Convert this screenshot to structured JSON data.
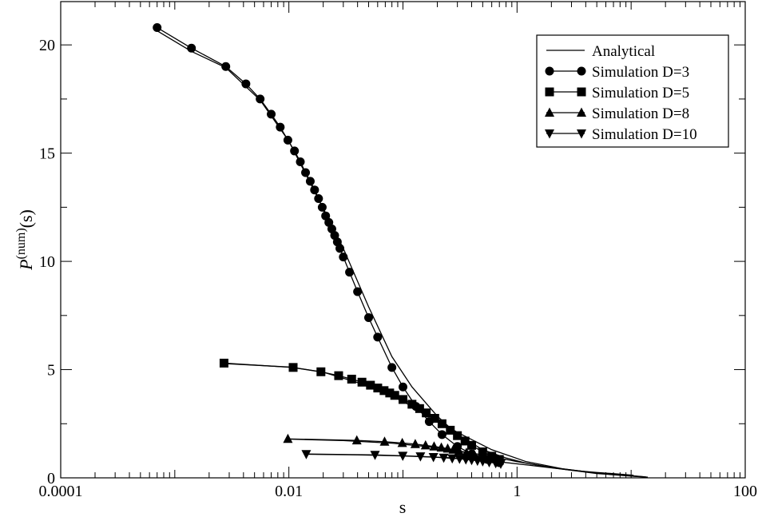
{
  "chart_data": {
    "type": "line",
    "x_scale": "log",
    "xlim": [
      0.0001,
      100
    ],
    "ylim": [
      0,
      22
    ],
    "xlabel": "s",
    "ylabel": {
      "main": "P",
      "sup": "(num)",
      "tail": "(s)"
    },
    "x_ticks": [
      {
        "value": 0.0001,
        "label": "0.0001"
      },
      {
        "value": 0.01,
        "label": "0.01"
      },
      {
        "value": 1,
        "label": "1"
      },
      {
        "value": 100,
        "label": "100"
      }
    ],
    "y_ticks": [
      {
        "value": 0,
        "label": "0"
      },
      {
        "value": 5,
        "label": "5"
      },
      {
        "value": 10,
        "label": "10"
      },
      {
        "value": 15,
        "label": "15"
      },
      {
        "value": 20,
        "label": "20"
      }
    ],
    "legend_position": "top-right",
    "legend": [
      "Analytical",
      "Simulation D=3",
      "Simulation D=5",
      "Simulation D=8",
      "Simulation D=10"
    ],
    "series": [
      {
        "name": "Simulation D=3",
        "marker": "circle",
        "x": [
          0.0007,
          0.0014,
          0.0028,
          0.0042,
          0.0056,
          0.007,
          0.0084,
          0.0098,
          0.0112,
          0.0126,
          0.014,
          0.0154,
          0.0168,
          0.0182,
          0.0196,
          0.021,
          0.0224,
          0.0238,
          0.0252,
          0.0266,
          0.028,
          0.03,
          0.034,
          0.04,
          0.05,
          0.06,
          0.08,
          0.1,
          0.13,
          0.17,
          0.22,
          0.3,
          0.4,
          0.55,
          0.7
        ],
        "y": [
          20.8,
          19.85,
          19.0,
          18.2,
          17.5,
          16.8,
          16.2,
          15.6,
          15.1,
          14.6,
          14.1,
          13.7,
          13.3,
          12.9,
          12.5,
          12.1,
          11.8,
          11.5,
          11.2,
          10.9,
          10.6,
          10.2,
          9.5,
          8.6,
          7.4,
          6.5,
          5.1,
          4.2,
          3.3,
          2.6,
          2.0,
          1.45,
          1.1,
          0.85,
          0.7
        ]
      },
      {
        "name": "Simulation D=5",
        "marker": "square",
        "x": [
          0.0027,
          0.0109,
          0.0191,
          0.0273,
          0.0355,
          0.0437,
          0.0519,
          0.0601,
          0.0683,
          0.0765,
          0.0847,
          0.1,
          0.12,
          0.14,
          0.16,
          0.19,
          0.22,
          0.26,
          0.3,
          0.35,
          0.4,
          0.5,
          0.6,
          0.7
        ],
        "y": [
          5.3,
          5.1,
          4.9,
          4.72,
          4.56,
          4.42,
          4.28,
          4.15,
          4.03,
          3.92,
          3.81,
          3.62,
          3.4,
          3.2,
          3.0,
          2.75,
          2.5,
          2.2,
          1.95,
          1.7,
          1.5,
          1.2,
          1.0,
          0.85
        ]
      },
      {
        "name": "Simulation D=8",
        "marker": "triangle-up",
        "x": [
          0.0098,
          0.0394,
          0.069,
          0.0986,
          0.1282,
          0.1578,
          0.1874,
          0.217,
          0.2466,
          0.2762,
          0.31,
          0.36,
          0.42,
          0.5,
          0.6,
          0.7
        ],
        "y": [
          1.8,
          1.73,
          1.67,
          1.61,
          1.56,
          1.5,
          1.45,
          1.4,
          1.35,
          1.3,
          1.24,
          1.16,
          1.08,
          0.98,
          0.88,
          0.8
        ]
      },
      {
        "name": "Simulation D=10",
        "marker": "triangle-down",
        "x": [
          0.0142,
          0.0569,
          0.0996,
          0.1423,
          0.185,
          0.2277,
          0.2704,
          0.3131,
          0.3558,
          0.4,
          0.45,
          0.5,
          0.57,
          0.65,
          0.72
        ],
        "y": [
          1.1,
          1.06,
          1.02,
          0.99,
          0.96,
          0.93,
          0.9,
          0.88,
          0.85,
          0.82,
          0.79,
          0.76,
          0.72,
          0.68,
          0.65
        ]
      },
      {
        "name": "Analytical",
        "marker": "none",
        "curves": [
          {
            "x": [
              0.0007,
              0.0014,
              0.0028,
              0.0056,
              0.01,
              0.02,
              0.03,
              0.05,
              0.08,
              0.12,
              0.2,
              0.3,
              0.5,
              0.8,
              1.2,
              2,
              3,
              5,
              8,
              10.5
            ],
            "y": [
              20.65,
              19.7,
              18.95,
              17.45,
              15.55,
              12.45,
              10.6,
              7.9,
              5.6,
              4.2,
              2.85,
              2.0,
              1.3,
              0.92,
              0.68,
              0.47,
              0.35,
              0.25,
              0.17,
              0.12
            ]
          },
          {
            "x": [
              0.0027,
              0.01,
              0.02,
              0.04,
              0.08,
              0.15,
              0.3,
              0.6,
              1.2,
              2.5,
              5,
              10,
              13
            ],
            "y": [
              5.28,
              5.12,
              4.88,
              4.4,
              3.78,
              3.05,
              2.1,
              1.3,
              0.75,
              0.42,
              0.22,
              0.1,
              0.05
            ]
          },
          {
            "x": [
              0.0098,
              0.03,
              0.08,
              0.2,
              0.5,
              1,
              2,
              5,
              10,
              13.5
            ],
            "y": [
              1.79,
              1.72,
              1.6,
              1.4,
              1.06,
              0.75,
              0.48,
              0.22,
              0.09,
              0.04
            ]
          },
          {
            "x": [
              0.0142,
              0.04,
              0.1,
              0.25,
              0.6,
              1.2,
              2.5,
              5,
              10,
              14
            ],
            "y": [
              1.09,
              1.06,
              1.01,
              0.93,
              0.78,
              0.6,
              0.4,
              0.2,
              0.08,
              0.03
            ]
          }
        ]
      }
    ]
  }
}
